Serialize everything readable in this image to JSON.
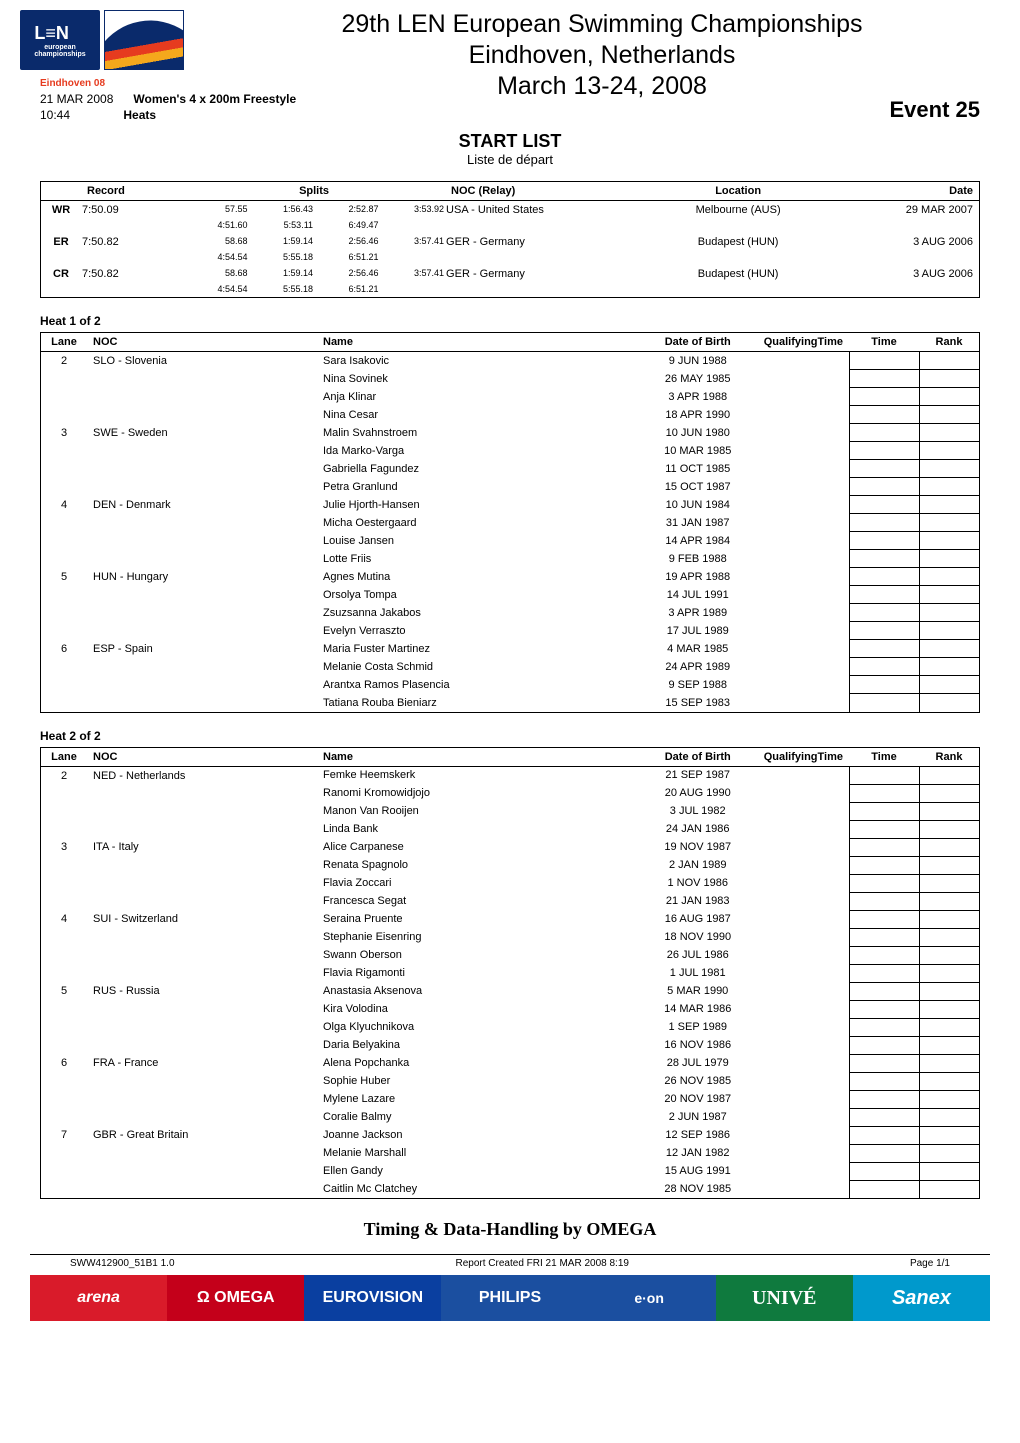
{
  "header": {
    "title_line1": "29th LEN European Swimming Championships",
    "title_line2": "Eindhoven, Netherlands",
    "title_line3": "March 13-24, 2008",
    "date": "21 MAR 2008",
    "time": "10:44",
    "event_desc": "Women's 4 x 200m Freestyle",
    "event_heats": "Heats",
    "event_number": "Event 25",
    "tagline": "Eindhoven 08"
  },
  "start_list": {
    "label_bold": "START LIST",
    "label_plain": "Liste de départ"
  },
  "records": {
    "cols": {
      "record": "Record",
      "splits": "Splits",
      "noc": "NOC (Relay)",
      "location": "Location",
      "date": "Date"
    },
    "rows": [
      {
        "code": "WR",
        "mark": "7:50.09",
        "splits_top": [
          "57.55",
          "1:56.43",
          "2:52.87",
          "3:53.92"
        ],
        "splits_bot": [
          "4:51.60",
          "5:53.11",
          "6:49.47",
          ""
        ],
        "noc": "USA - United States",
        "location": "Melbourne (AUS)",
        "date": "29 MAR 2007"
      },
      {
        "code": "ER",
        "mark": "7:50.82",
        "splits_top": [
          "58.68",
          "1:59.14",
          "2:56.46",
          "3:57.41"
        ],
        "splits_bot": [
          "4:54.54",
          "5:55.18",
          "6:51.21",
          ""
        ],
        "noc": "GER - Germany",
        "location": "Budapest (HUN)",
        "date": "3 AUG 2006"
      },
      {
        "code": "CR",
        "mark": "7:50.82",
        "splits_top": [
          "58.68",
          "1:59.14",
          "2:56.46",
          "3:57.41"
        ],
        "splits_bot": [
          "4:54.54",
          "5:55.18",
          "6:51.21",
          ""
        ],
        "noc": "GER - Germany",
        "location": "Budapest (HUN)",
        "date": "3 AUG 2006"
      }
    ]
  },
  "heat_cols": {
    "lane": "Lane",
    "noc": "NOC",
    "name": "Name",
    "dob": "Date of Birth",
    "qt": "Qualifying",
    "qt_sub": "Time",
    "time": "Time",
    "rank": "Rank"
  },
  "heats": [
    {
      "label": "Heat 1 of 2",
      "entries": [
        {
          "lane": "2",
          "noc": "SLO - Slovenia",
          "swimmers": [
            {
              "name": "Sara Isakovic",
              "dob": "9 JUN 1988"
            },
            {
              "name": "Nina Sovinek",
              "dob": "26 MAY 1985"
            },
            {
              "name": "Anja Klinar",
              "dob": "3 APR 1988"
            },
            {
              "name": "Nina Cesar",
              "dob": "18 APR 1990"
            }
          ]
        },
        {
          "lane": "3",
          "noc": "SWE - Sweden",
          "swimmers": [
            {
              "name": "Malin Svahnstroem",
              "dob": "10 JUN 1980"
            },
            {
              "name": "Ida Marko-Varga",
              "dob": "10 MAR 1985"
            },
            {
              "name": "Gabriella Fagundez",
              "dob": "11 OCT 1985"
            },
            {
              "name": "Petra Granlund",
              "dob": "15 OCT 1987"
            }
          ]
        },
        {
          "lane": "4",
          "noc": "DEN - Denmark",
          "swimmers": [
            {
              "name": "Julie Hjorth-Hansen",
              "dob": "10 JUN 1984"
            },
            {
              "name": "Micha Oestergaard",
              "dob": "31 JAN 1987"
            },
            {
              "name": "Louise Jansen",
              "dob": "14 APR 1984"
            },
            {
              "name": "Lotte Friis",
              "dob": "9 FEB 1988"
            }
          ]
        },
        {
          "lane": "5",
          "noc": "HUN - Hungary",
          "swimmers": [
            {
              "name": "Agnes Mutina",
              "dob": "19 APR 1988"
            },
            {
              "name": "Orsolya Tompa",
              "dob": "14 JUL 1991"
            },
            {
              "name": "Zsuzsanna Jakabos",
              "dob": "3 APR 1989"
            },
            {
              "name": "Evelyn Verraszto",
              "dob": "17 JUL 1989"
            }
          ]
        },
        {
          "lane": "6",
          "noc": "ESP - Spain",
          "swimmers": [
            {
              "name": "Maria Fuster Martinez",
              "dob": "4 MAR 1985"
            },
            {
              "name": "Melanie Costa Schmid",
              "dob": "24 APR 1989"
            },
            {
              "name": "Arantxa Ramos Plasencia",
              "dob": "9 SEP 1988"
            },
            {
              "name": "Tatiana Rouba Bieniarz",
              "dob": "15 SEP 1983"
            }
          ]
        }
      ]
    },
    {
      "label": "Heat 2 of 2",
      "entries": [
        {
          "lane": "2",
          "noc": "NED - Netherlands",
          "swimmers": [
            {
              "name": "Femke Heemskerk",
              "dob": "21 SEP 1987"
            },
            {
              "name": "Ranomi Kromowidjojo",
              "dob": "20 AUG 1990"
            },
            {
              "name": "Manon Van Rooijen",
              "dob": "3 JUL 1982"
            },
            {
              "name": "Linda Bank",
              "dob": "24 JAN 1986"
            }
          ]
        },
        {
          "lane": "3",
          "noc": "ITA - Italy",
          "swimmers": [
            {
              "name": "Alice Carpanese",
              "dob": "19 NOV 1987"
            },
            {
              "name": "Renata Spagnolo",
              "dob": "2 JAN 1989"
            },
            {
              "name": "Flavia Zoccari",
              "dob": "1 NOV 1986"
            },
            {
              "name": "Francesca Segat",
              "dob": "21 JAN 1983"
            }
          ]
        },
        {
          "lane": "4",
          "noc": "SUI - Switzerland",
          "swimmers": [
            {
              "name": "Seraina Pruente",
              "dob": "16 AUG 1987"
            },
            {
              "name": "Stephanie Eisenring",
              "dob": "18 NOV 1990"
            },
            {
              "name": "Swann Oberson",
              "dob": "26 JUL 1986"
            },
            {
              "name": "Flavia Rigamonti",
              "dob": "1 JUL 1981"
            }
          ]
        },
        {
          "lane": "5",
          "noc": "RUS - Russia",
          "swimmers": [
            {
              "name": "Anastasia Aksenova",
              "dob": "5 MAR 1990"
            },
            {
              "name": "Kira Volodina",
              "dob": "14 MAR 1986"
            },
            {
              "name": "Olga Klyuchnikova",
              "dob": "1 SEP 1989"
            },
            {
              "name": "Daria Belyakina",
              "dob": "16 NOV 1986"
            }
          ]
        },
        {
          "lane": "6",
          "noc": "FRA - France",
          "swimmers": [
            {
              "name": "Alena Popchanka",
              "dob": "28 JUL 1979"
            },
            {
              "name": "Sophie Huber",
              "dob": "26 NOV 1985"
            },
            {
              "name": "Mylene Lazare",
              "dob": "20 NOV 1987"
            },
            {
              "name": "Coralie Balmy",
              "dob": "2 JUN 1987"
            }
          ]
        },
        {
          "lane": "7",
          "noc": "GBR - Great Britain",
          "swimmers": [
            {
              "name": "Joanne Jackson",
              "dob": "12 SEP 1986"
            },
            {
              "name": "Melanie Marshall",
              "dob": "12 JAN 1982"
            },
            {
              "name": "Ellen Gandy",
              "dob": "15 AUG 1991"
            },
            {
              "name": "Caitlin Mc Clatchey",
              "dob": "28 NOV 1985"
            }
          ]
        }
      ]
    }
  ],
  "footer": {
    "heading": "Timing & Data-Handling by OMEGA",
    "left": "SWW412900_51B1 1.0",
    "center": "Report Created  FRI 21 MAR 2008 8:19",
    "right": "Page 1/1",
    "sponsors": {
      "arena": "arena",
      "omega": "Ω OMEGA",
      "eurovision": "EUROVISION",
      "philips": "PHILIPS",
      "eon": "e·on",
      "unive": "UNIVÉ",
      "sanex": "Sanex"
    }
  },
  "colors": {
    "text": "#000000",
    "bg": "#ffffff",
    "len_blue": "#0a2a6b",
    "arena": "#d91b2a",
    "omega": "#c4001a",
    "euro": "#0a3fa0",
    "philips": "#1b4fa0",
    "eon": "#e2001a",
    "unive": "#0f7a3e",
    "sanex": "#0099cc"
  }
}
